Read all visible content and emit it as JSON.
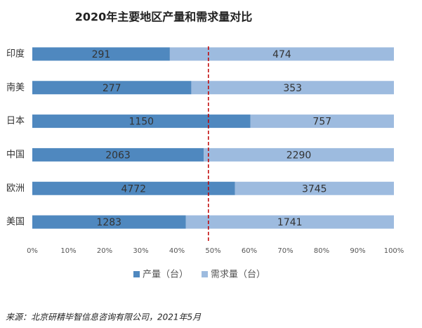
{
  "chart_data": {
    "type": "stacked-percent-hbar",
    "title": "2020年主要地区产量和需求量对比",
    "categories": [
      "印度",
      "南美",
      "日本",
      "中国",
      "欧洲",
      "美国"
    ],
    "series": [
      {
        "name": "产量（台）",
        "color": "#4f88bf",
        "values": [
          291,
          277,
          1150,
          2063,
          4772,
          1283
        ]
      },
      {
        "name": "需求量（台）",
        "color": "#9dbbdf",
        "values": [
          474,
          353,
          757,
          2290,
          3745,
          1741
        ]
      }
    ],
    "xlim": [
      0,
      100
    ],
    "xticks": [
      {
        "value": 0,
        "label": "0%"
      },
      {
        "value": 10,
        "label": "10%"
      },
      {
        "value": 20,
        "label": "20%"
      },
      {
        "value": 30,
        "label": "30%"
      },
      {
        "value": 40,
        "label": "40%"
      },
      {
        "value": 50,
        "label": "50%"
      },
      {
        "value": 60,
        "label": "60%"
      },
      {
        "value": 70,
        "label": "70%"
      },
      {
        "value": 80,
        "label": "80%"
      },
      {
        "value": 90,
        "label": "90%"
      },
      {
        "value": 100,
        "label": "100%"
      }
    ],
    "reference_line": {
      "value": 48.7,
      "color": "#c00000"
    },
    "legend": "bottom",
    "source": "来源：北京研精毕智信息咨询有限公司，2021年5月"
  }
}
